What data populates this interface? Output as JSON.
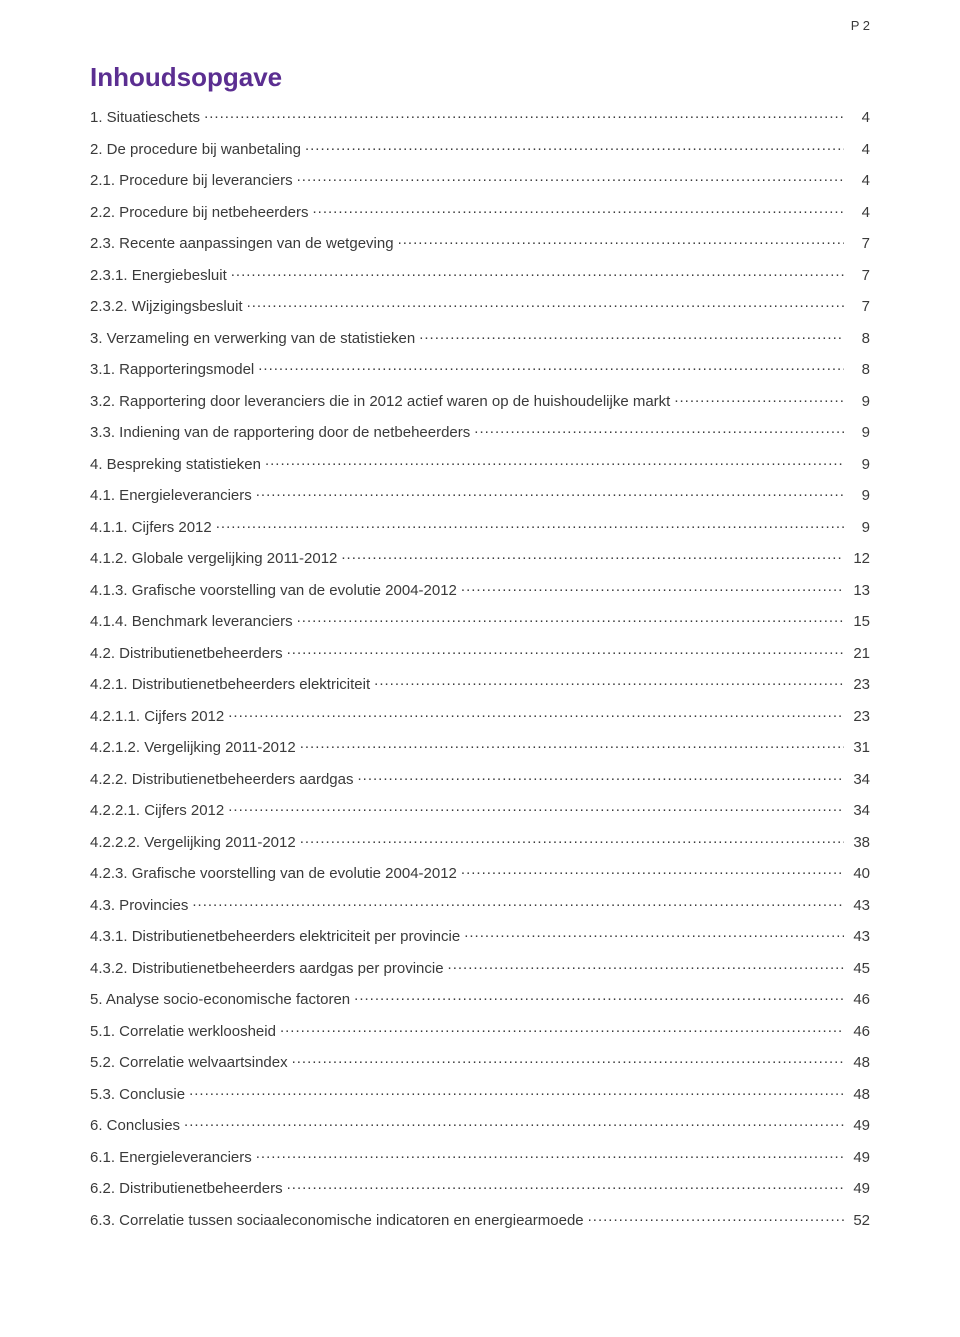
{
  "pageNumber": "P 2",
  "title": "Inhoudsopgave",
  "colors": {
    "title": "#5b2e91",
    "text": "#3a3a3a",
    "background": "#ffffff"
  },
  "typography": {
    "title_fontsize_pt": 20,
    "body_fontsize_pt": 11,
    "font_family": "Verdana"
  },
  "toc": [
    {
      "label": "1. Situatieschets",
      "page": "4"
    },
    {
      "label": "2. De procedure bij wanbetaling",
      "page": "4"
    },
    {
      "label": "2.1. Procedure bij leveranciers",
      "page": "4"
    },
    {
      "label": "2.2. Procedure bij netbeheerders",
      "page": "4"
    },
    {
      "label": "2.3. Recente aanpassingen van de wetgeving",
      "page": "7"
    },
    {
      "label": "2.3.1. Energiebesluit",
      "page": "7"
    },
    {
      "label": "2.3.2. Wijzigingsbesluit",
      "page": "7"
    },
    {
      "label": "3. Verzameling en verwerking van de statistieken",
      "page": "8"
    },
    {
      "label": "3.1. Rapporteringsmodel",
      "page": "8"
    },
    {
      "label": "3.2. Rapportering door leveranciers die in 2012 actief waren op de huishoudelijke markt",
      "page": "9"
    },
    {
      "label": "3.3. Indiening van de rapportering door de netbeheerders",
      "page": "9"
    },
    {
      "label": "4. Bespreking statistieken",
      "page": "9"
    },
    {
      "label": "4.1. Energieleveranciers",
      "page": "9"
    },
    {
      "label": "4.1.1. Cijfers 2012",
      "page": "9"
    },
    {
      "label": "4.1.2. Globale vergelijking 2011-2012",
      "page": "12"
    },
    {
      "label": "4.1.3. Grafische voorstelling van de evolutie 2004-2012",
      "page": "13"
    },
    {
      "label": "4.1.4. Benchmark leveranciers",
      "page": "15"
    },
    {
      "label": "4.2. Distributienetbeheerders",
      "page": "21"
    },
    {
      "label": "4.2.1. Distributienetbeheerders elektriciteit",
      "page": "23"
    },
    {
      "label": "4.2.1.1. Cijfers 2012",
      "page": "23"
    },
    {
      "label": "4.2.1.2. Vergelijking 2011-2012",
      "page": "31"
    },
    {
      "label": "4.2.2. Distributienetbeheerders aardgas",
      "page": "34"
    },
    {
      "label": "4.2.2.1. Cijfers 2012",
      "page": "34"
    },
    {
      "label": "4.2.2.2. Vergelijking 2011-2012",
      "page": "38"
    },
    {
      "label": "4.2.3. Grafische voorstelling van de evolutie 2004-2012",
      "page": "40"
    },
    {
      "label": "4.3. Provincies",
      "page": "43"
    },
    {
      "label": "4.3.1. Distributienetbeheerders elektriciteit per provincie",
      "page": "43"
    },
    {
      "label": "4.3.2. Distributienetbeheerders aardgas per provincie",
      "page": "45"
    },
    {
      "label": "5. Analyse socio-economische factoren",
      "page": "46"
    },
    {
      "label": "5.1. Correlatie werkloosheid",
      "page": "46"
    },
    {
      "label": "5.2. Correlatie welvaartsindex",
      "page": "48"
    },
    {
      "label": "5.3. Conclusie",
      "page": "48"
    },
    {
      "label": "6. Conclusies",
      "page": "49"
    },
    {
      "label": "6.1. Energieleveranciers",
      "page": "49"
    },
    {
      "label": "6.2. Distributienetbeheerders",
      "page": "49"
    },
    {
      "label": "6.3. Correlatie tussen sociaaleconomische indicatoren en energiearmoede",
      "page": "52"
    }
  ]
}
